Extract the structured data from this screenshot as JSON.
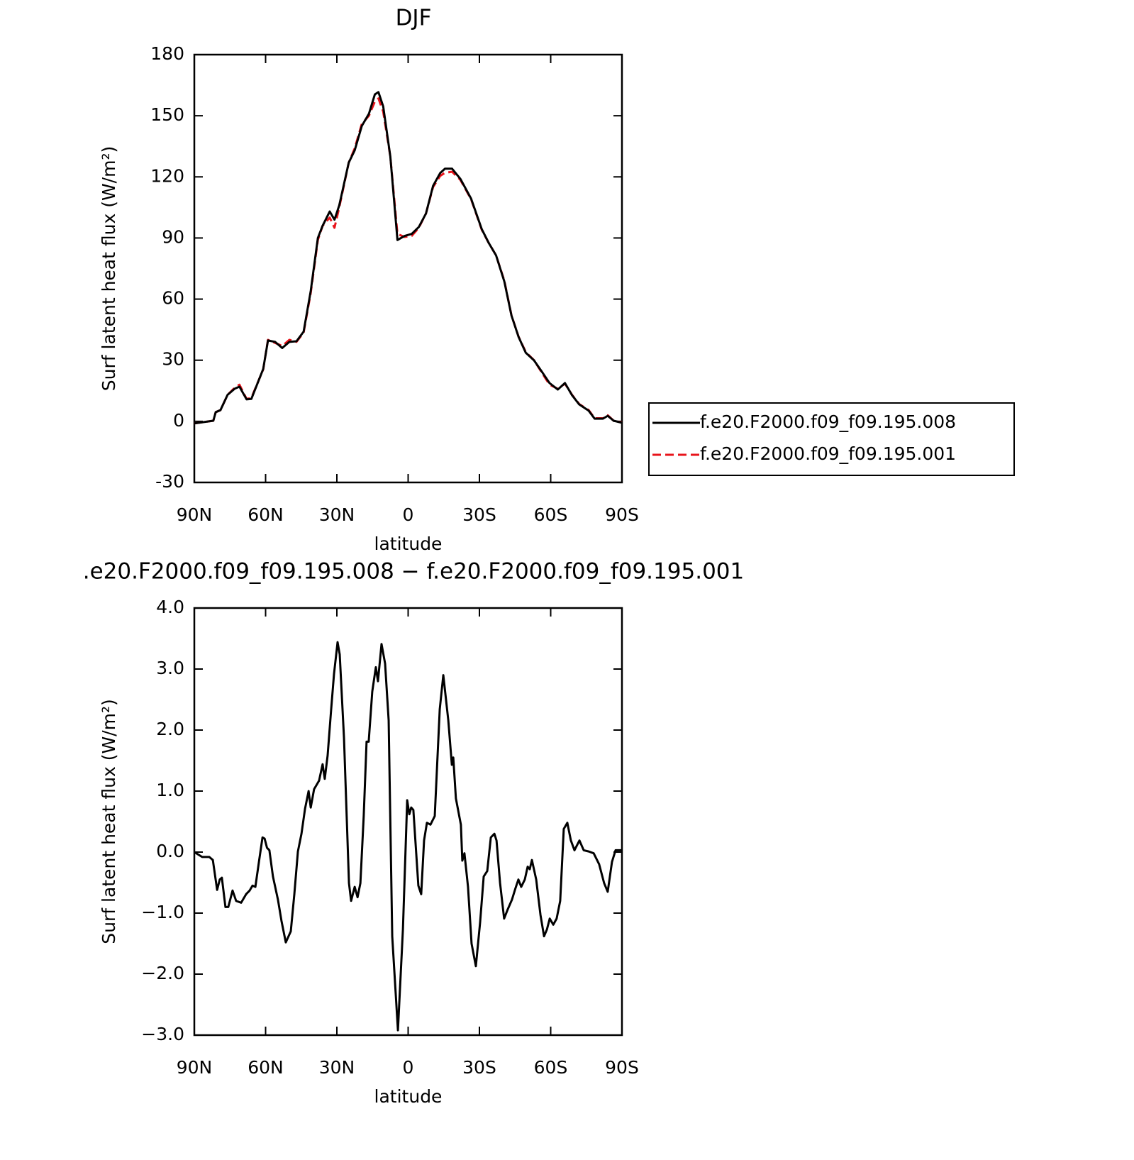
{
  "chart_data": [
    {
      "type": "line",
      "title": "DJF",
      "x_label": "latitude",
      "y_label": "Surf latent heat flux (W/m²)",
      "x": [
        90,
        82,
        81,
        79,
        76,
        73,
        71,
        68,
        66,
        61,
        59,
        56,
        53,
        50,
        47,
        44,
        41,
        38,
        36,
        33,
        31,
        29,
        25,
        22.5,
        19.5,
        16.5,
        14,
        12.5,
        10.5,
        7.5,
        4.5,
        1.5,
        -1.5,
        -4.5,
        -7.5,
        -10.5,
        -13.5,
        -15.5,
        -18.5,
        -22,
        -26.5,
        -31,
        -34,
        -37,
        -40.5,
        -43.5,
        -46.5,
        -49.5,
        -53,
        -56.5,
        -59.5,
        -63,
        -66,
        -69,
        -72,
        -76,
        -78.5,
        -82,
        -84,
        -86.5,
        -90
      ],
      "series": [
        {
          "name": "f.e20.F2000.f09_f09.195.001",
          "color": "#e8141b",
          "line_style": "dashed",
          "values": [
            -1,
            0.3,
            4.5,
            5.5,
            13,
            16.5,
            18,
            11,
            11.5,
            25.5,
            40,
            38.5,
            37,
            40,
            39,
            43.5,
            63,
            89,
            96,
            100,
            95,
            105,
            127,
            134,
            146,
            150,
            157,
            158.5,
            152,
            130,
            92,
            90.5,
            91,
            95,
            102,
            115,
            120.5,
            122,
            122.5,
            118.5,
            109,
            94,
            87.4,
            81.5,
            69,
            52,
            41.5,
            34,
            30,
            23.5,
            18,
            16,
            18.5,
            13,
            8.5,
            5.5,
            1.5,
            1.5,
            3,
            0.3,
            -0.5
          ]
        },
        {
          "name": "f.e20.F2000.f09_f09.195.008",
          "color": "#000000",
          "line_style": "solid",
          "values": [
            -1,
            0.3,
            4.5,
            5.5,
            13,
            16,
            17,
            10.8,
            11,
            25.7,
            39.7,
            39,
            36,
            39,
            39.3,
            44,
            64,
            90,
            96,
            103,
            99,
            106,
            127,
            133,
            145,
            151,
            160.5,
            161.6,
            154.6,
            130,
            89,
            91,
            92,
            95.4,
            102,
            115.6,
            121.9,
            124,
            124,
            119,
            109.3,
            94.3,
            87.4,
            81.5,
            68.6,
            51.9,
            41.4,
            33.7,
            29.9,
            24,
            18.8,
            15.6,
            18.8,
            12.8,
            8.3,
            5.2,
            1.3,
            1.3,
            2.7,
            0.3,
            -0.7
          ]
        }
      ],
      "xlim": [
        90,
        -90
      ],
      "xticks": [
        {
          "value": 90,
          "label": "90N"
        },
        {
          "value": 60,
          "label": "60N"
        },
        {
          "value": 30,
          "label": "30N"
        },
        0,
        {
          "value": -30,
          "label": "30S"
        },
        {
          "value": -60,
          "label": "60S"
        },
        {
          "value": -90,
          "label": "90S"
        }
      ],
      "ylim": [
        -30,
        180
      ],
      "yticks": [
        -30,
        0,
        30,
        60,
        90,
        120,
        150,
        180
      ],
      "legend": "right"
    },
    {
      "type": "line",
      "title": ".e20.F2000.f09_f09.195.008 − f.e20.F2000.f09_f09.195.001",
      "x_label": "latitude",
      "y_label": "Surf latent heat flux (W/m²)",
      "x": [
        90,
        86.7,
        83.7,
        82.2,
        80.4,
        79.3,
        78.4,
        76.9,
        75.7,
        73.9,
        72.4,
        70.3,
        68.2,
        66.7,
        65.5,
        64.3,
        62.8,
        61.3,
        60.4,
        59.4,
        58.4,
        56.9,
        54.8,
        53.3,
        51.5,
        49.4,
        47.9,
        46.4,
        44.9,
        43.4,
        41.9,
        41,
        39.6,
        37.5,
        36,
        35.1,
        33.9,
        32.4,
        31.2,
        29.7,
        28.8,
        27,
        24.9,
        24,
        22.5,
        21.3,
        20.1,
        18.7,
        17.5,
        16.6,
        15.1,
        13.6,
        12.7,
        11.2,
        9.7,
        8.2,
        6.7,
        4.3,
        2.2,
        0.4,
        -0.5,
        -1.3,
        -2.2,
        -4.3,
        -5.5,
        -6.7,
        -7.9,
        -9.4,
        -11.2,
        -13.3,
        -14.8,
        -16.9,
        -18.4,
        -19,
        -20.1,
        -22.2,
        -22.8,
        -23.7,
        -25.2,
        -26.7,
        -28.5,
        -30.3,
        -31.8,
        -33.3,
        -34.8,
        -36.3,
        -37.2,
        -38.7,
        -40.4,
        -41.9,
        -43.7,
        -45.2,
        -46.4,
        -47.6,
        -49.1,
        -50.3,
        -51.2,
        -52.1,
        -53.9,
        -55.7,
        -57.2,
        -58.4,
        -59.6,
        -61.1,
        -62.5,
        -64,
        -65.5,
        -67,
        -68.5,
        -70,
        -72.1,
        -73.9,
        -76,
        -78.1,
        -80.4,
        -82.5,
        -84,
        -85.8,
        -87.3,
        -90
      ],
      "series": [
        {
          "color": "#000000",
          "line_style": "solid",
          "values": [
            0,
            -0.08,
            -0.08,
            -0.13,
            -0.62,
            -0.45,
            -0.42,
            -0.9,
            -0.9,
            -0.63,
            -0.8,
            -0.83,
            -0.69,
            -0.63,
            -0.55,
            -0.57,
            -0.16,
            0.24,
            0.22,
            0.07,
            0.03,
            -0.4,
            -0.78,
            -1.13,
            -1.48,
            -1.3,
            -0.69,
            0.01,
            0.3,
            0.71,
            1.0,
            0.73,
            1.03,
            1.17,
            1.44,
            1.2,
            1.58,
            2.34,
            2.92,
            3.44,
            3.24,
            1.87,
            -0.51,
            -0.8,
            -0.57,
            -0.74,
            -0.51,
            0.59,
            1.81,
            1.81,
            2.63,
            3.03,
            2.8,
            3.41,
            3.09,
            2.16,
            -1.38,
            -2.92,
            -1.27,
            0.85,
            0.62,
            0.73,
            0.69,
            -0.55,
            -0.69,
            0.19,
            0.48,
            0.45,
            0.59,
            2.34,
            2.9,
            2.16,
            1.43,
            1.55,
            0.88,
            0.45,
            -0.14,
            -0.02,
            -0.57,
            -1.5,
            -1.87,
            -1.15,
            -0.4,
            -0.31,
            0.24,
            0.3,
            0.19,
            -0.51,
            -1.09,
            -0.94,
            -0.78,
            -0.59,
            -0.45,
            -0.57,
            -0.45,
            -0.24,
            -0.28,
            -0.13,
            -0.45,
            -1.03,
            -1.38,
            -1.27,
            -1.09,
            -1.19,
            -1.09,
            -0.8,
            0.38,
            0.48,
            0.19,
            0.03,
            0.19,
            0.03,
            0.01,
            -0.02,
            -0.2,
            -0.51,
            -0.65,
            -0.16,
            0.03,
            0.03
          ]
        }
      ],
      "xlim": [
        90,
        -90
      ],
      "xticks": [
        {
          "value": 90,
          "label": "90N"
        },
        {
          "value": 60,
          "label": "60N"
        },
        {
          "value": 30,
          "label": "30N"
        },
        0,
        {
          "value": -30,
          "label": "30S"
        },
        {
          "value": -60,
          "label": "60S"
        },
        {
          "value": -90,
          "label": "90S"
        }
      ],
      "ylim": [
        -3,
        4
      ],
      "yticks": [
        {
          "value": -3,
          "label": "−3.0"
        },
        {
          "value": -2,
          "label": "−2.0"
        },
        {
          "value": -1,
          "label": "−1.0"
        },
        {
          "value": 0,
          "label": "0.0"
        },
        {
          "value": 1,
          "label": "1.0"
        },
        {
          "value": 2,
          "label": "2.0"
        },
        {
          "value": 3,
          "label": "3.0"
        },
        {
          "value": 4,
          "label": "4.0"
        }
      ]
    }
  ]
}
